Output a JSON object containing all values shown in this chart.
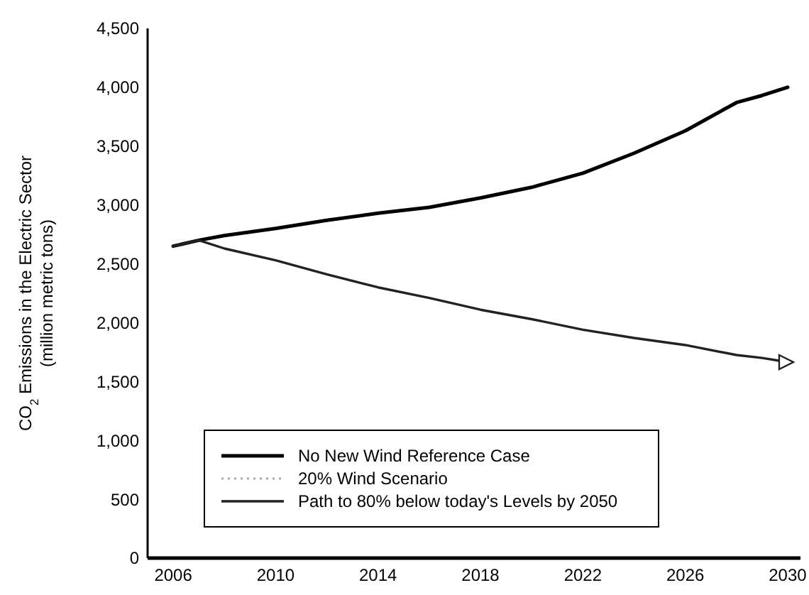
{
  "chart_data": {
    "type": "line",
    "ylabel": "CO$_{2}$ Emissions in the Electric Sector\n(million metric tons)",
    "x": [
      2006,
      2007,
      2008,
      2010,
      2012,
      2014,
      2016,
      2018,
      2020,
      2022,
      2024,
      2026,
      2028,
      2029,
      2030
    ],
    "series": [
      {
        "name": "No New Wind Reference Case",
        "color": "#000000",
        "line_style": "solid",
        "values": [
          2650,
          2700,
          2740,
          2800,
          2870,
          2930,
          2980,
          3060,
          3150,
          3270,
          3440,
          3630,
          3870,
          3930,
          4000
        ]
      },
      {
        "name": "20% Wind Scenario",
        "color": "#aaaaaa",
        "line_style": "dotted",
        "values": [
          null,
          null,
          null,
          null,
          null,
          null,
          null,
          null,
          null,
          null,
          null,
          null,
          null,
          null,
          null
        ]
      },
      {
        "name": "Path to 80% below today's Levels by 2050",
        "color": "#222222",
        "line_style": "solid",
        "values": [
          2650,
          2700,
          2630,
          2530,
          2410,
          2300,
          2210,
          2110,
          2030,
          1940,
          1870,
          1810,
          1725,
          1700,
          1665
        ]
      }
    ],
    "xlim": [
      2005,
      2030.5
    ],
    "xticks": [
      2006,
      2010,
      2014,
      2018,
      2022,
      2026,
      2030
    ],
    "ylim": [
      0,
      4500
    ],
    "yticks": [
      0,
      500,
      {
        "value": 1000,
        "label": "1,000"
      },
      {
        "value": 1500,
        "label": "1,500"
      },
      {
        "value": 2000,
        "label": "2,000"
      },
      {
        "value": 2500,
        "label": "2,500"
      },
      {
        "value": 3000,
        "label": "3,000"
      },
      {
        "value": 3500,
        "label": "3,500"
      },
      {
        "value": 4000,
        "label": "4,000"
      },
      {
        "value": 4500,
        "label": "4,500"
      }
    ],
    "grid": false,
    "legend": "bottom",
    "marker": "none"
  }
}
